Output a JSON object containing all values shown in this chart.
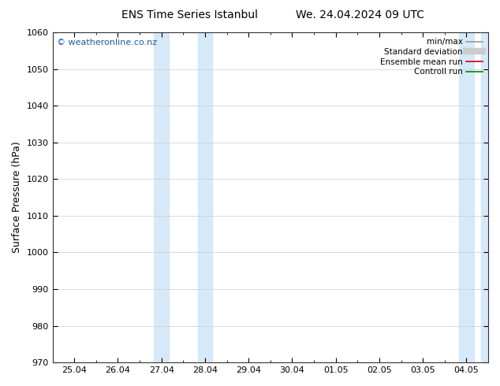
{
  "title_left": "ENS Time Series Istanbul",
  "title_right": "We. 24.04.2024 09 UTC",
  "ylabel": "Surface Pressure (hPa)",
  "ylim": [
    970,
    1060
  ],
  "yticks": [
    970,
    980,
    990,
    1000,
    1010,
    1020,
    1030,
    1040,
    1050,
    1060
  ],
  "xtick_labels": [
    "25.04",
    "26.04",
    "27.04",
    "28.04",
    "29.04",
    "30.04",
    "01.05",
    "02.05",
    "03.05",
    "04.05"
  ],
  "xtick_positions": [
    0,
    1,
    2,
    3,
    4,
    5,
    6,
    7,
    8,
    9
  ],
  "xlim": [
    -0.5,
    9.5
  ],
  "shaded_bands": [
    {
      "x_start": 1.83,
      "x_end": 2.17,
      "color": "#d6e9f8"
    },
    {
      "x_start": 2.83,
      "x_end": 3.17,
      "color": "#d6e9f8"
    },
    {
      "x_start": 8.83,
      "x_end": 9.17,
      "color": "#d6e9f8"
    },
    {
      "x_start": 9.33,
      "x_end": 9.5,
      "color": "#d6e9f8"
    }
  ],
  "watermark": "© weatheronline.co.nz",
  "watermark_color": "#1a5ca8",
  "legend_items": [
    {
      "label": "min/max",
      "color": "#999999",
      "lw": 1.2
    },
    {
      "label": "Standard deviation",
      "color": "#cccccc",
      "lw": 6
    },
    {
      "label": "Ensemble mean run",
      "color": "#cc0000",
      "lw": 1.2
    },
    {
      "label": "Controll run",
      "color": "#008800",
      "lw": 1.2
    }
  ],
  "bg_color": "#ffffff",
  "plot_bg_color": "#ffffff",
  "grid_color": "#cccccc",
  "border_color": "#333333",
  "title_fontsize": 10,
  "ylabel_fontsize": 9,
  "tick_fontsize": 8,
  "legend_fontsize": 7.5,
  "watermark_fontsize": 8
}
